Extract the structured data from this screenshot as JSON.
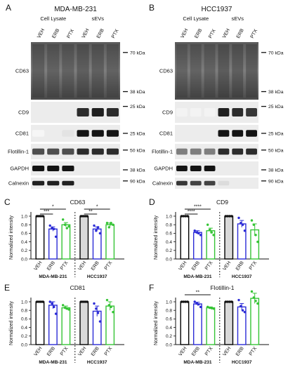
{
  "blots": [
    {
      "letter": "A",
      "title": "MDA-MB-231",
      "group_labels": [
        "Cell Lysate",
        "sEVs"
      ],
      "lanes": [
        "VEH",
        "ERB",
        "PTX",
        "VEH",
        "ERB",
        "PTX"
      ],
      "rows": [
        {
          "label": "CD63",
          "markers": [
            "70 kDa",
            "38 kDa"
          ]
        },
        {
          "label": "CD9",
          "markers": [
            "25 kDa"
          ]
        },
        {
          "label": "CD81",
          "markers": [
            "25 kDa"
          ]
        },
        {
          "label": "Flotillin-1",
          "markers": [
            "50 kDa"
          ]
        },
        {
          "label": "GAPDH",
          "markers": [
            "38 kDa"
          ]
        },
        {
          "label": "Calnexin",
          "markers": [
            "90 kDa"
          ]
        }
      ]
    },
    {
      "letter": "B",
      "title": "HCC1937",
      "group_labels": [
        "Cell Lysate",
        "sEVs"
      ],
      "lanes": [
        "VEH",
        "ERB",
        "PTX",
        "VEH",
        "ERB",
        "PTX"
      ],
      "rows": [
        {
          "label": "CD63",
          "markers": [
            "70 kDa",
            "38 kDa"
          ]
        },
        {
          "label": "CD9",
          "markers": [
            "25 kDa"
          ]
        },
        {
          "label": "CD81",
          "markers": [
            "25 kDa"
          ]
        },
        {
          "label": "Flotillin-1",
          "markers": [
            "50 kDa"
          ]
        },
        {
          "label": "GAPDH",
          "markers": [
            "38 kDa"
          ]
        },
        {
          "label": "Calnexin",
          "markers": [
            "90 kDa"
          ]
        }
      ]
    }
  ],
  "colors": {
    "veh": "#000000",
    "erb": "#2b2bd6",
    "ptx": "#35c435",
    "veh_fill_hcc": "#d9d9d9"
  },
  "chart_data": [
    {
      "letter": "C",
      "type": "bar",
      "title": "CD63",
      "ylabel": "Normalized intensity",
      "ylim": [
        0.0,
        1.0
      ],
      "yticks": [
        "0.0",
        "0.2",
        "0.4",
        "0.6",
        "0.8",
        "1.0"
      ],
      "categories": [
        "VEH",
        "ERB",
        "PTX",
        "VEH",
        "ERB",
        "PTX"
      ],
      "groups": [
        "MDA-MB-231",
        "HCC1937"
      ],
      "values": [
        1.0,
        0.7,
        0.8,
        1.0,
        0.7,
        0.8
      ],
      "errors": [
        0,
        0.05,
        0.05,
        0,
        0.05,
        0.04
      ],
      "points": [
        [
          1,
          1,
          1,
          1
        ],
        [
          0.78,
          0.72,
          0.7,
          0.52
        ],
        [
          0.92,
          0.8,
          0.72,
          0.76
        ],
        [
          1,
          1,
          1,
          1
        ],
        [
          0.78,
          0.66,
          0.74,
          0.6
        ],
        [
          0.84,
          0.74,
          0.84,
          0.8
        ]
      ],
      "significance": [
        {
          "bars": [
            0,
            1
          ],
          "label": "***"
        },
        {
          "bars": [
            0,
            2
          ],
          "label": "*"
        },
        {
          "bars": [
            3,
            4
          ],
          "label": "**"
        },
        {
          "bars": [
            3,
            5
          ],
          "label": "*"
        }
      ]
    },
    {
      "letter": "D",
      "type": "bar",
      "title": "CD9",
      "ylabel": "Normalized intensity",
      "ylim": [
        0.0,
        1.0
      ],
      "yticks": [
        "0.0",
        "0.2",
        "0.4",
        "0.6",
        "0.8",
        "1.0"
      ],
      "categories": [
        "VEH",
        "ERB",
        "PTX",
        "VEH",
        "ERB",
        "PTX"
      ],
      "groups": [
        "MDA-MB-231",
        "HCC1937"
      ],
      "values": [
        1.0,
        0.62,
        0.66,
        1.0,
        0.82,
        0.68
      ],
      "errors": [
        0,
        0.04,
        0.06,
        0,
        0.08,
        0.14
      ],
      "points": [
        [
          1,
          1,
          1,
          1
        ],
        [
          0.66,
          0.62,
          0.6,
          0.56
        ],
        [
          0.8,
          0.68,
          0.62,
          0.56
        ],
        [
          1,
          1,
          1,
          1
        ],
        [
          0.96,
          0.84,
          0.8,
          0.66
        ],
        [
          0.9,
          0.8,
          0.56,
          0.4
        ]
      ],
      "significance": [
        {
          "bars": [
            0,
            1
          ],
          "label": "****"
        },
        {
          "bars": [
            0,
            2
          ],
          "label": "****"
        }
      ]
    },
    {
      "letter": "E",
      "type": "bar",
      "title": "CD81",
      "ylabel": "Normalized intensity",
      "ylim": [
        0.0,
        1.0
      ],
      "yticks": [
        "0.0",
        "0.2",
        "0.4",
        "0.6",
        "0.8",
        "1.0"
      ],
      "categories": [
        "VEH",
        "ERB",
        "PTX",
        "VEH",
        "ERB",
        "PTX"
      ],
      "groups": [
        "MDA-MB-231",
        "HCC1937"
      ],
      "values": [
        1.0,
        0.92,
        0.86,
        1.0,
        0.78,
        0.9
      ],
      "errors": [
        0,
        0.08,
        0.04,
        0,
        0.12,
        0.1
      ],
      "points": [
        [
          1,
          1,
          1,
          1
        ],
        [
          1.0,
          0.96,
          0.88,
          0.72
        ],
        [
          0.92,
          0.86,
          0.84,
          0.82
        ],
        [
          1,
          1,
          1,
          1
        ],
        [
          0.96,
          0.84,
          0.74,
          0.54
        ],
        [
          1.04,
          0.92,
          0.88,
          0.76
        ]
      ],
      "significance": []
    },
    {
      "letter": "F",
      "type": "bar",
      "title": "Flotillin-1",
      "ylabel": "Normalized intensity",
      "ylim": [
        0.0,
        1.0
      ],
      "yticks": [
        "0.0",
        "0.2",
        "0.4",
        "0.6",
        "0.8",
        "1.0"
      ],
      "categories": [
        "VEH",
        "ERB",
        "PTX",
        "VEH",
        "ERB",
        "PTX"
      ],
      "groups": [
        "MDA-MB-231",
        "HCC1937"
      ],
      "values": [
        1.0,
        0.95,
        0.86,
        1.0,
        0.88,
        1.08
      ],
      "errors": [
        0,
        0.04,
        0.02,
        0,
        0.08,
        0.12
      ],
      "points": [
        [
          1,
          1,
          1,
          1
        ],
        [
          1.0,
          0.96,
          0.94,
          0.88
        ],
        [
          0.88,
          0.86,
          0.85,
          0.84
        ],
        [
          1,
          1,
          1,
          1
        ],
        [
          1.04,
          0.9,
          0.8,
          0.76
        ],
        [
          1.24,
          1.1,
          1.02,
          0.96
        ]
      ],
      "significance": [
        {
          "bars": [
            0,
            2
          ],
          "label": "**"
        }
      ]
    }
  ]
}
